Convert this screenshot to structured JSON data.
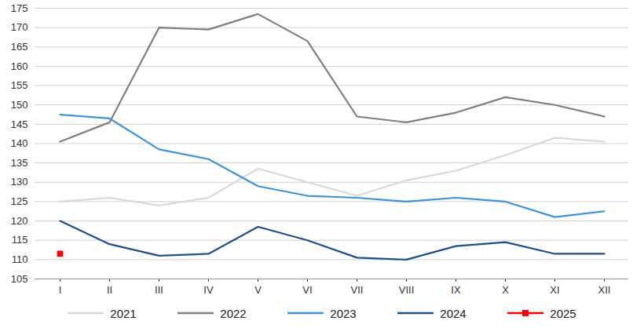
{
  "chart_data": {
    "type": "line",
    "categories": [
      "I",
      "II",
      "III",
      "IV",
      "V",
      "VI",
      "VII",
      "VIII",
      "IX",
      "X",
      "XI",
      "XII"
    ],
    "series": [
      {
        "name": "2021",
        "color": "#d9d9d9",
        "values": [
          125,
          126,
          124,
          126,
          133.5,
          130,
          126.5,
          130.5,
          133,
          137,
          141.5,
          140.5
        ]
      },
      {
        "name": "2022",
        "color": "#7f7f7f",
        "values": [
          140.5,
          145.5,
          170,
          169.5,
          173.5,
          166.5,
          147,
          145.5,
          148,
          152,
          150,
          147
        ]
      },
      {
        "name": "2023",
        "color": "#3d94d9",
        "values": [
          147.5,
          146.5,
          138.5,
          136,
          129,
          126.5,
          126,
          125,
          126,
          125,
          121,
          122.5
        ]
      },
      {
        "name": "2024",
        "color": "#1f4e8c",
        "values": [
          120,
          114,
          111,
          111.5,
          118.5,
          115,
          110.5,
          110,
          113.5,
          114.5,
          111.5,
          111.5
        ]
      },
      {
        "name": "2025",
        "color": "#ff0000",
        "marker": "square",
        "values": [
          111.5,
          null,
          null,
          null,
          null,
          null,
          null,
          null,
          null,
          null,
          null,
          null
        ]
      }
    ],
    "ylim": [
      105,
      175
    ],
    "yticks": [
      105,
      110,
      115,
      120,
      125,
      130,
      135,
      140,
      145,
      150,
      155,
      160,
      165,
      170,
      175
    ],
    "grid": true,
    "legend": "bottom"
  }
}
